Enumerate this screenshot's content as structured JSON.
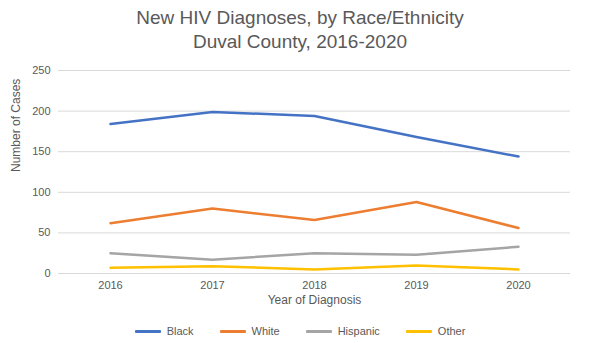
{
  "chart_data": {
    "type": "line",
    "title": "New HIV Diagnoses, by Race/Ethnicity",
    "subtitle": "Duval County, 2016-2020",
    "x_label": "Year of Diagnosis",
    "y_label": "Number of Cases",
    "x": [
      2016,
      2017,
      2018,
      2019,
      2020
    ],
    "series": [
      {
        "name": "Black",
        "color": "#4472c4",
        "values": [
          184,
          199,
          194,
          168,
          144
        ]
      },
      {
        "name": "White",
        "color": "#ed7d31",
        "values": [
          62,
          80,
          66,
          88,
          56
        ]
      },
      {
        "name": "Hispanic",
        "color": "#a5a5a5",
        "values": [
          25,
          17,
          25,
          23,
          33
        ]
      },
      {
        "name": "Other",
        "color": "#ffc000",
        "values": [
          7,
          9,
          5,
          10,
          5
        ]
      }
    ],
    "ylim": [
      0,
      250
    ],
    "yticks": [
      0,
      50,
      100,
      150,
      200,
      250
    ],
    "grid": true,
    "legend": "bottom"
  }
}
